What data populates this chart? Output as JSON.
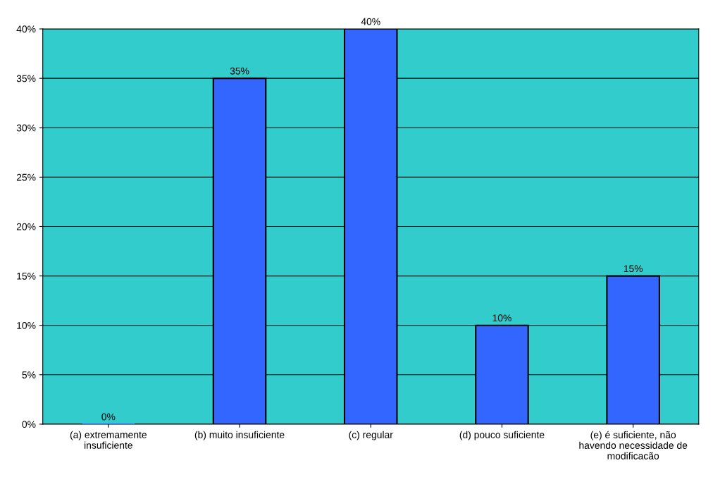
{
  "chart_data": {
    "type": "bar",
    "categories": [
      "(a) extremamente\ninsuficiente",
      "(b) muito insuficiente",
      "(c) regular",
      "(d) pouco suficiente",
      "(e) é suficiente, não\nhavendo necessidade de\nmodificacão"
    ],
    "values": [
      0,
      35,
      40,
      10,
      15
    ],
    "color": "#3366ff",
    "value_labels": [
      "0%",
      "35%",
      "40%",
      "10%",
      "15%"
    ],
    "ylim": [
      0,
      40
    ],
    "yticks": [
      {
        "value": 0,
        "label": "0%"
      },
      {
        "value": 5,
        "label": "5%"
      },
      {
        "value": 10,
        "label": "10%"
      },
      {
        "value": 15,
        "label": "15%"
      },
      {
        "value": 20,
        "label": "20%"
      },
      {
        "value": 25,
        "label": "25%"
      },
      {
        "value": 30,
        "label": "30%"
      },
      {
        "value": 35,
        "label": "35%"
      },
      {
        "value": 40,
        "label": "40%"
      }
    ],
    "grid": "y"
  }
}
